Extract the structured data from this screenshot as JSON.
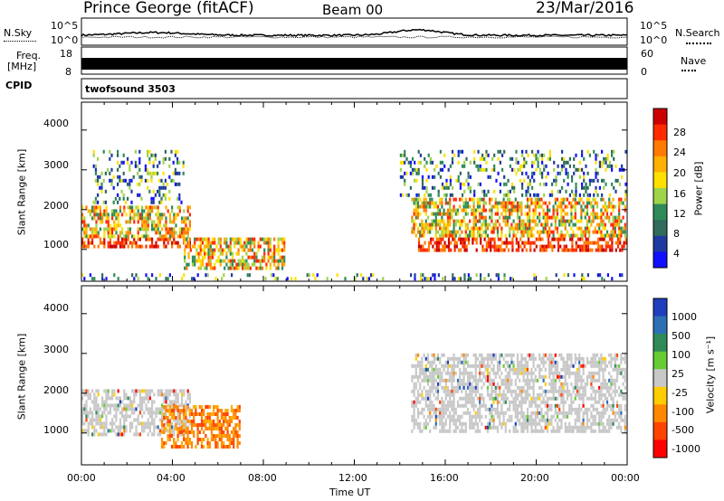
{
  "header": {
    "station": "Prince George (fitACF)",
    "beam": "Beam 00",
    "date": "23/Mar/2016"
  },
  "strip_panels": {
    "nsky": {
      "label": "N.Sky",
      "ticks": [
        "10^5",
        "10^0"
      ]
    },
    "nsearch": {
      "label": "N.Search",
      "ticks": [
        "10^5",
        "10^0"
      ]
    },
    "freq": {
      "label_line1": "Freq.",
      "label_line2": "[MHz]",
      "ticks": [
        "18",
        "8"
      ]
    },
    "nave": {
      "label": "Nave",
      "ticks": [
        "60",
        "0"
      ]
    },
    "cpid": {
      "label": "CPID",
      "program": "twofsound 3503"
    }
  },
  "chart_data": [
    {
      "type": "heatmap",
      "title": "",
      "ylabel": "Slant Range [km]",
      "xlabel": "",
      "ylim": [
        200,
        4700
      ],
      "xlim_hours": [
        0,
        24
      ],
      "yticks": [
        "1000",
        "2000",
        "3000",
        "4000"
      ],
      "colorbar": {
        "label": "Power [dB]",
        "ticks": [
          "28",
          "24",
          "20",
          "16",
          "12",
          "8",
          "4"
        ],
        "colors": [
          "#cc0000",
          "#ff2a00",
          "#ff7a00",
          "#ffb000",
          "#ffe000",
          "#9fd34a",
          "#2e8b57",
          "#2e6b5a",
          "#1e3aa0",
          "#1010ff"
        ]
      },
      "echo_regions": [
        {
          "t": [
            0.0,
            4.8
          ],
          "range_km": [
            1000,
            1300
          ],
          "level": "strong"
        },
        {
          "t": [
            0.0,
            4.8
          ],
          "range_km": [
            1300,
            2100
          ],
          "level": "moderate"
        },
        {
          "t": [
            0.5,
            4.5
          ],
          "range_km": [
            2100,
            3500
          ],
          "level": "weak"
        },
        {
          "t": [
            4.5,
            9.0
          ],
          "range_km": [
            500,
            1300
          ],
          "level": "moderate"
        },
        {
          "t": [
            14.8,
            24.0
          ],
          "range_km": [
            950,
            1300
          ],
          "level": "strong"
        },
        {
          "t": [
            14.5,
            24.0
          ],
          "range_km": [
            1300,
            2300
          ],
          "level": "moderate"
        },
        {
          "t": [
            14.0,
            24.0
          ],
          "range_km": [
            2300,
            3500
          ],
          "level": "weak"
        },
        {
          "t": [
            0.0,
            24.0
          ],
          "range_km": [
            200,
            400
          ],
          "level": "ground-scatter-weak"
        }
      ]
    },
    {
      "type": "heatmap",
      "title": "",
      "ylabel": "Slant Range [km]",
      "xlabel": "Time UT",
      "ylim": [
        200,
        4700
      ],
      "xlim_hours": [
        0,
        24
      ],
      "yticks": [
        "1000",
        "2000",
        "3000",
        "4000"
      ],
      "xticks": [
        "00:00",
        "04:00",
        "08:00",
        "12:00",
        "16:00",
        "20:00",
        "00:00"
      ],
      "colorbar": {
        "label": "Velocity [m s⁻¹]",
        "ticks": [
          "1000",
          "500",
          "100",
          "25",
          "-25",
          "-100",
          "-500",
          "-1000"
        ],
        "colors": [
          "#1f3fbf",
          "#2d6fb5",
          "#2e8b57",
          "#66cc33",
          "#c8c8c8",
          "#ffcc00",
          "#ff8800",
          "#ff4400",
          "#ff0000"
        ]
      },
      "echo_regions": [
        {
          "t": [
            0.0,
            4.8
          ],
          "range_km": [
            900,
            2100
          ],
          "velocity": "ground-scatter"
        },
        {
          "t": [
            3.5,
            7.0
          ],
          "range_km": [
            600,
            1700
          ],
          "velocity": "-100 to -500"
        },
        {
          "t": [
            14.5,
            24.0
          ],
          "range_km": [
            1000,
            3000
          ],
          "velocity": "ground-scatter"
        }
      ]
    }
  ]
}
